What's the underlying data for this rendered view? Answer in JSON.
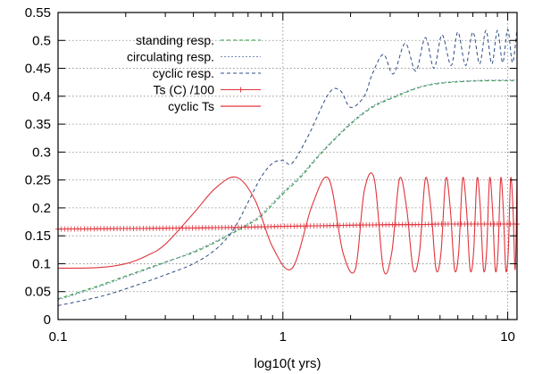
{
  "chart_data": {
    "type": "line",
    "xlabel": "log10(t yrs)",
    "ylabel": "",
    "x_scale": "log",
    "xlim": [
      0.1,
      11
    ],
    "ylim": [
      0,
      0.55
    ],
    "x_ticks": [
      0.1,
      1,
      10
    ],
    "x_tick_labels": [
      "0.1",
      "1",
      "10"
    ],
    "y_ticks": [
      0,
      0.05,
      0.1,
      0.15,
      0.2,
      0.25,
      0.3,
      0.35,
      0.4,
      0.45,
      0.5,
      0.55
    ],
    "y_tick_labels": [
      "0",
      "0.05",
      "0.1",
      "0.15",
      "0.2",
      "0.25",
      "0.3",
      "0.35",
      "0.4",
      "0.45",
      "0.5",
      "0.55"
    ],
    "grid": true,
    "legend_position": "top-left",
    "series": [
      {
        "name": "standing resp.",
        "color": "#1f9a2e",
        "style": "dashed",
        "x": [
          0.1,
          0.15,
          0.2,
          0.3,
          0.4,
          0.5,
          0.6,
          0.7,
          0.8,
          1,
          1.2,
          1.5,
          2,
          2.5,
          3,
          4,
          5,
          7,
          10,
          11
        ],
        "y": [
          0.037,
          0.06,
          0.078,
          0.103,
          0.12,
          0.138,
          0.155,
          0.17,
          0.185,
          0.225,
          0.255,
          0.3,
          0.35,
          0.38,
          0.395,
          0.415,
          0.423,
          0.427,
          0.428,
          0.428
        ]
      },
      {
        "name": "circulating resp.",
        "color": "#7a8fb8",
        "style": "dotted",
        "x": [
          0.1,
          0.15,
          0.2,
          0.3,
          0.4,
          0.5,
          0.6,
          0.7,
          0.8,
          1,
          1.2,
          1.5,
          2,
          2.5,
          3,
          4,
          5,
          7,
          10,
          11
        ],
        "y": [
          0.035,
          0.058,
          0.076,
          0.102,
          0.122,
          0.14,
          0.157,
          0.172,
          0.188,
          0.228,
          0.258,
          0.302,
          0.352,
          0.382,
          0.397,
          0.416,
          0.424,
          0.428,
          0.429,
          0.429
        ]
      },
      {
        "name": "cyclic resp.",
        "color": "#2e4d86",
        "style": "dashed",
        "x": [
          0.1,
          0.15,
          0.2,
          0.3,
          0.4,
          0.5,
          0.6,
          0.7,
          0.8,
          0.9,
          1,
          1.1,
          1.3,
          1.6,
          1.8,
          2,
          2.3,
          2.5,
          2.8,
          3.1,
          3.5,
          3.9,
          4.3,
          4.7,
          5.1,
          5.6,
          6,
          6.5,
          7,
          7.5,
          8,
          8.5,
          9,
          9.5,
          10,
          10.5,
          11
        ],
        "y": [
          0.025,
          0.04,
          0.055,
          0.08,
          0.1,
          0.125,
          0.16,
          0.21,
          0.255,
          0.28,
          0.285,
          0.28,
          0.33,
          0.405,
          0.41,
          0.38,
          0.4,
          0.44,
          0.475,
          0.44,
          0.495,
          0.445,
          0.505,
          0.45,
          0.51,
          0.455,
          0.515,
          0.455,
          0.515,
          0.458,
          0.518,
          0.458,
          0.518,
          0.46,
          0.52,
          0.46,
          0.52
        ]
      },
      {
        "name": "Ts (C) /100",
        "color": "#e0343c",
        "style": "line-with-plus-markers",
        "x": [
          0.1,
          0.2,
          0.4,
          0.6,
          0.8,
          1,
          1.5,
          2,
          3,
          4,
          5,
          7,
          10,
          11
        ],
        "y": [
          0.162,
          0.163,
          0.164,
          0.165,
          0.166,
          0.167,
          0.168,
          0.169,
          0.17,
          0.17,
          0.171,
          0.171,
          0.171,
          0.171
        ]
      },
      {
        "name": "cyclic Ts",
        "color": "#e0343c",
        "style": "solid",
        "x": [
          0.1,
          0.15,
          0.2,
          0.25,
          0.3,
          0.4,
          0.5,
          0.62,
          0.75,
          0.9,
          1.1,
          1.35,
          1.6,
          1.85,
          2.1,
          2.3,
          2.55,
          2.8,
          3.05,
          3.3,
          3.55,
          3.8,
          4.05,
          4.3,
          4.55,
          4.8,
          5.05,
          5.3,
          5.55,
          5.8,
          6.05,
          6.3,
          6.55,
          6.8,
          7.05,
          7.3,
          7.55,
          7.8,
          8.05,
          8.3,
          8.55,
          8.8,
          9.05,
          9.3,
          9.55,
          9.8,
          10.05,
          10.3,
          10.55,
          10.8,
          11
        ],
        "y": [
          0.092,
          0.093,
          0.1,
          0.115,
          0.135,
          0.19,
          0.235,
          0.255,
          0.215,
          0.13,
          0.092,
          0.205,
          0.252,
          0.12,
          0.09,
          0.23,
          0.252,
          0.09,
          0.12,
          0.252,
          0.2,
          0.09,
          0.12,
          0.252,
          0.2,
          0.09,
          0.12,
          0.252,
          0.2,
          0.09,
          0.12,
          0.252,
          0.2,
          0.09,
          0.12,
          0.252,
          0.2,
          0.09,
          0.12,
          0.252,
          0.2,
          0.09,
          0.12,
          0.252,
          0.2,
          0.09,
          0.12,
          0.252,
          0.2,
          0.09,
          0.252
        ]
      }
    ]
  }
}
